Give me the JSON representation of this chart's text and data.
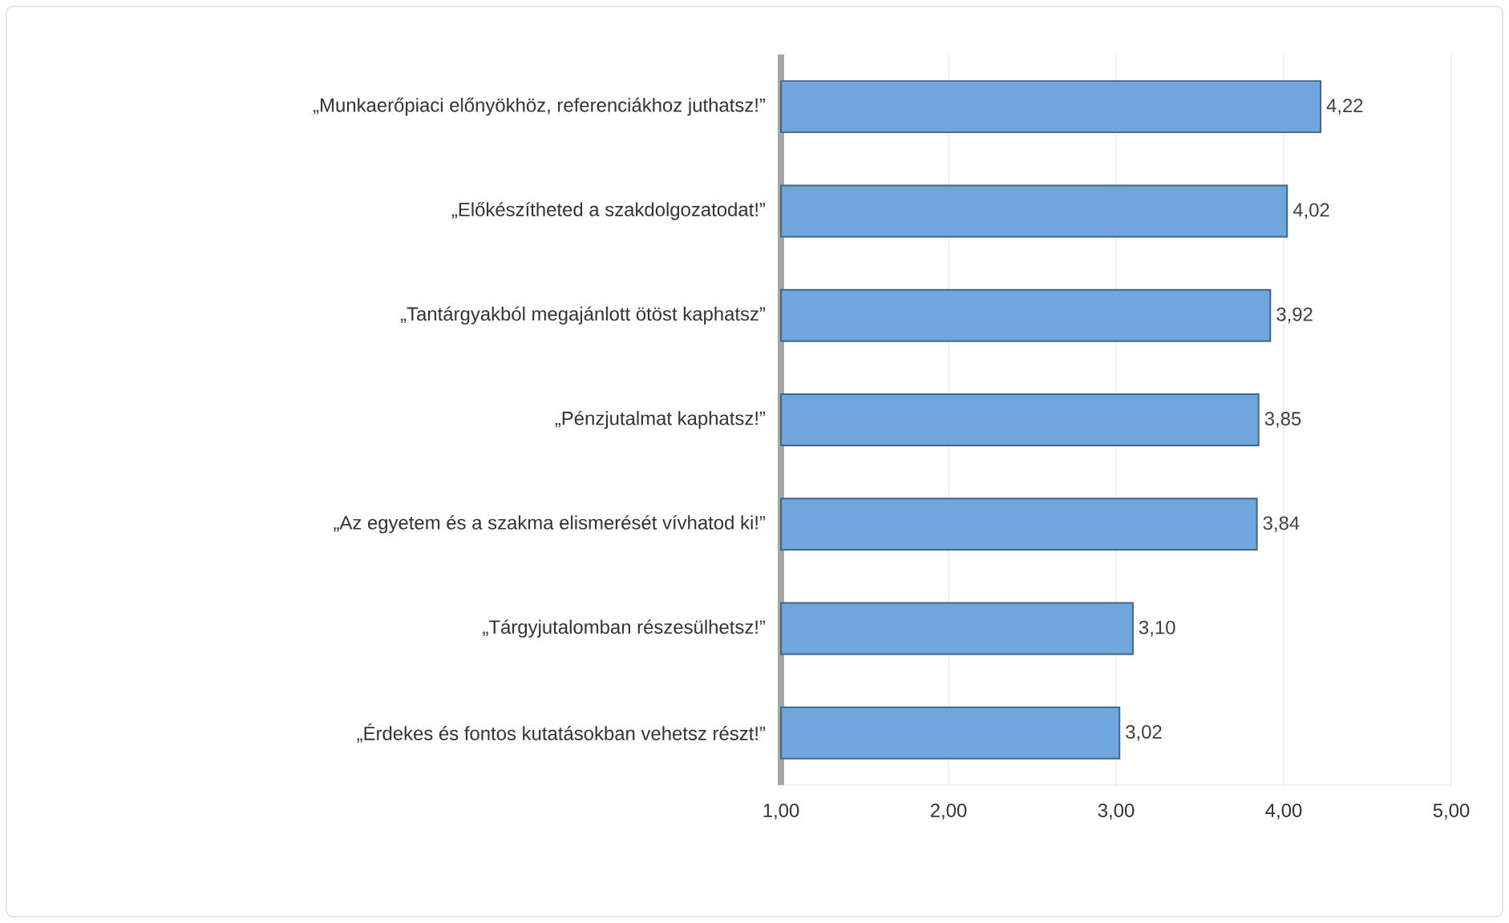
{
  "chart_data": {
    "type": "bar",
    "orientation": "horizontal",
    "categories": [
      "„Munkaerőpiaci előnyökhöz, referenciákhoz juthatsz!”",
      "„Előkészítheted a szakdolgozatodat!”",
      "„Tantárgyakból megajánlott ötöst kaphatsz”",
      "„Pénzjutalmat kaphatsz!”",
      "„Az egyetem és a szakma elismerését vívhatod ki!”",
      "„Tárgyjutalomban részesülhetsz!”",
      "„Érdekes és fontos kutatásokban vehetsz részt!”"
    ],
    "values": [
      4.22,
      4.02,
      3.92,
      3.85,
      3.84,
      3.1,
      3.02
    ],
    "value_labels": [
      "4,22",
      "4,02",
      "3,92",
      "3,85",
      "3,84",
      "3,10",
      "3,02"
    ],
    "color": "#6fa6de",
    "xlim": [
      1,
      5
    ],
    "xticks": [
      {
        "value": 1,
        "label": "1,00"
      },
      {
        "value": 2,
        "label": "2,00"
      },
      {
        "value": 3,
        "label": "3,00"
      },
      {
        "value": 4,
        "label": "4,00"
      },
      {
        "value": 5,
        "label": "5,00"
      }
    ],
    "grid": "x"
  }
}
